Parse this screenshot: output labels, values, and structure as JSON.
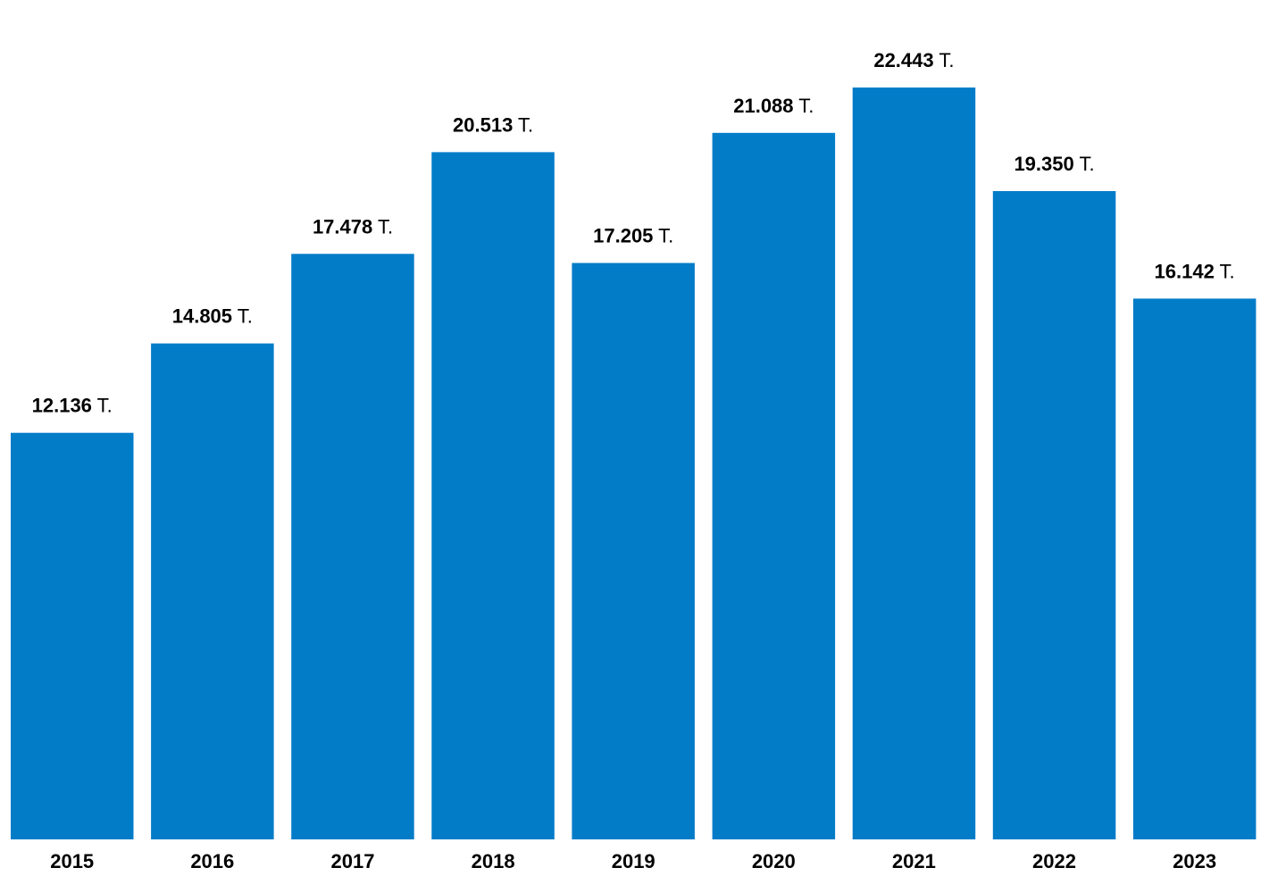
{
  "chart_data": {
    "type": "bar",
    "title": "",
    "xlabel": "",
    "ylabel": "",
    "categories": [
      "2015",
      "2016",
      "2017",
      "2018",
      "2019",
      "2020",
      "2021",
      "2022",
      "2023"
    ],
    "values": [
      12136,
      14805,
      17478,
      20513,
      17205,
      21088,
      22443,
      19350,
      16142
    ],
    "data_labels": [
      "12.136",
      "14.805",
      "17.478",
      "20.513",
      "17.205",
      "21.088",
      "22.443",
      "19.350",
      "16.142"
    ],
    "unit_suffix": "T.",
    "ylim": [
      0,
      22443
    ],
    "grid": false,
    "bar_color": "#037cc8"
  }
}
